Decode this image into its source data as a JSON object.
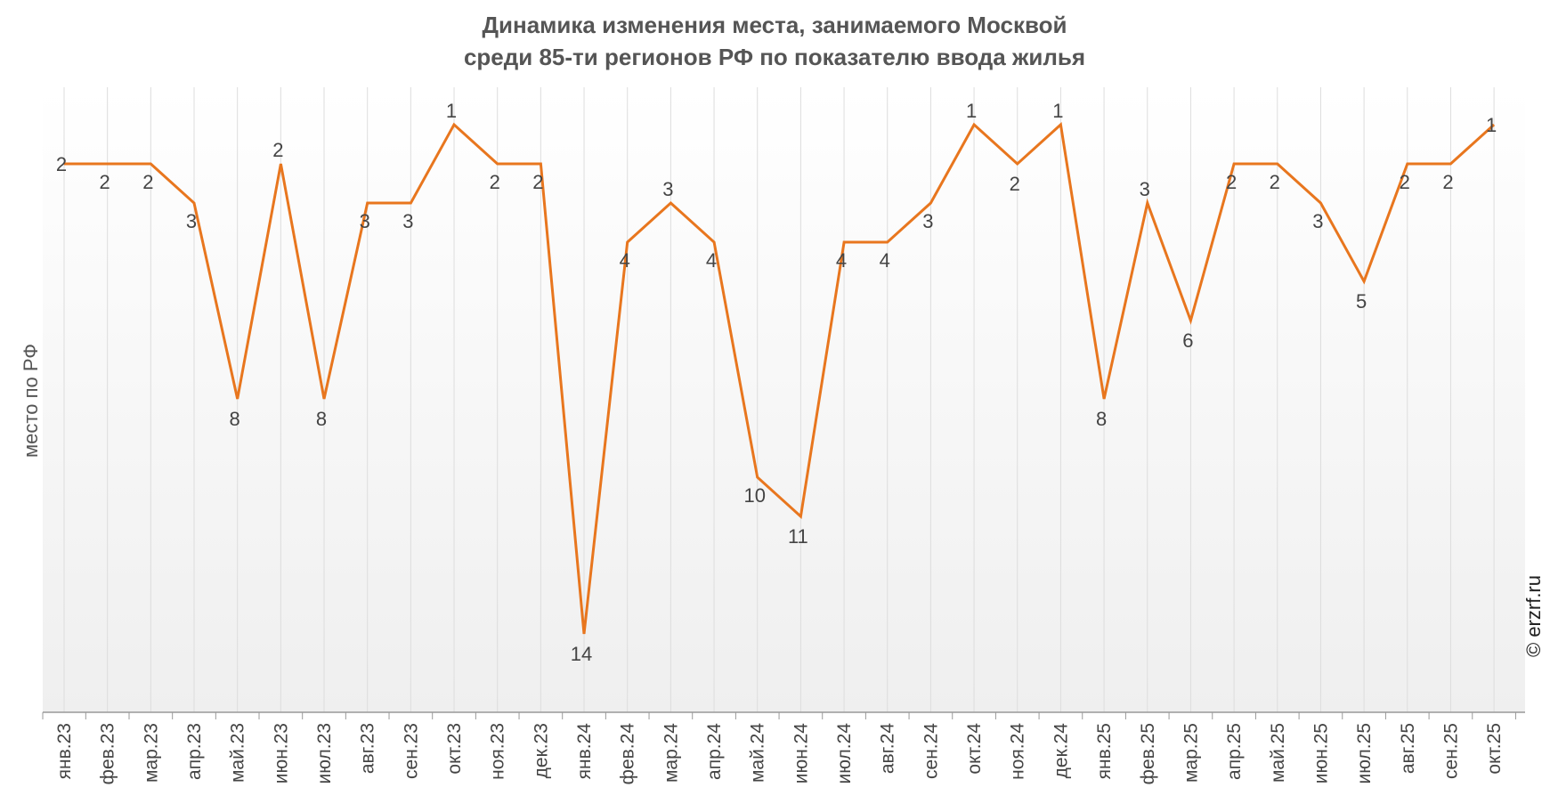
{
  "chart_data": {
    "type": "line",
    "title": [
      "Динамика изменения места, занимаемого Москвой",
      "среди 85-ти регионов РФ по показателю ввода жилья"
    ],
    "ylabel": "место по РФ",
    "source": "© erzrf.ru",
    "y_axis": {
      "reversed": true,
      "ylim": [
        1,
        15
      ]
    },
    "grid": "vertical",
    "line_color": "#E8761E",
    "categories": [
      "янв.23",
      "фев.23",
      "мар.23",
      "апр.23",
      "май.23",
      "июн.23",
      "июл.23",
      "авг.23",
      "сен.23",
      "окт.23",
      "ноя.23",
      "дек.23",
      "янв.24",
      "фев.24",
      "мар.24",
      "апр.24",
      "май.24",
      "июн.24",
      "июл.24",
      "авг.24",
      "сен.24",
      "окт.24",
      "ноя.24",
      "дек.24",
      "янв.25",
      "фев.25",
      "мар.25",
      "апр.25",
      "май.25",
      "июн.25",
      "июл.25",
      "авг.25",
      "сен.25",
      "окт.25"
    ],
    "values": [
      2,
      2,
      2,
      3,
      8,
      2,
      8,
      3,
      3,
      1,
      2,
      2,
      14,
      4,
      3,
      4,
      10,
      11,
      4,
      4,
      3,
      1,
      2,
      1,
      8,
      3,
      6,
      2,
      2,
      3,
      5,
      2,
      2,
      1
    ],
    "data_labels": [
      "2",
      "2",
      "2",
      "3",
      "8",
      "2",
      "8",
      "3",
      "3",
      "1",
      "2",
      "2",
      "14",
      "4",
      "3",
      "4",
      "10",
      "11",
      "4",
      "4",
      "3",
      "1",
      "2",
      "1",
      "8",
      "3",
      "6",
      "2",
      "2",
      "3",
      "5",
      "2",
      "2",
      "1"
    ]
  }
}
